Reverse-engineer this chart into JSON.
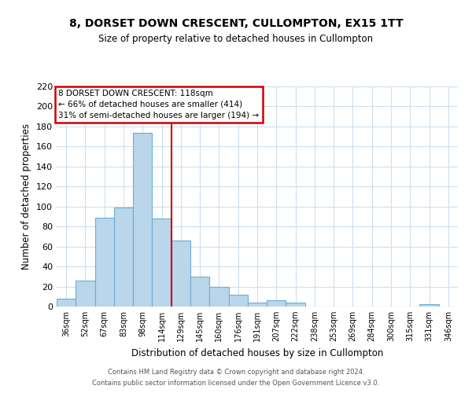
{
  "title": "8, DORSET DOWN CRESCENT, CULLOMPTON, EX15 1TT",
  "subtitle": "Size of property relative to detached houses in Cullompton",
  "xlabel": "Distribution of detached houses by size in Cullompton",
  "ylabel": "Number of detached properties",
  "bar_labels": [
    "36sqm",
    "52sqm",
    "67sqm",
    "83sqm",
    "98sqm",
    "114sqm",
    "129sqm",
    "145sqm",
    "160sqm",
    "176sqm",
    "191sqm",
    "207sqm",
    "222sqm",
    "238sqm",
    "253sqm",
    "269sqm",
    "284sqm",
    "300sqm",
    "315sqm",
    "331sqm",
    "346sqm"
  ],
  "bar_heights": [
    8,
    26,
    89,
    99,
    174,
    88,
    66,
    30,
    20,
    12,
    4,
    6,
    4,
    0,
    0,
    0,
    0,
    0,
    0,
    2,
    0
  ],
  "bar_color": "#bad6eb",
  "bar_edge_color": "#6aaed6",
  "vline_x": 5.5,
  "vline_color": "#cc0000",
  "ylim": [
    0,
    220
  ],
  "yticks": [
    0,
    20,
    40,
    60,
    80,
    100,
    120,
    140,
    160,
    180,
    200,
    220
  ],
  "annotation_line1": "8 DORSET DOWN CRESCENT: 118sqm",
  "annotation_line2": "← 66% of detached houses are smaller (414)",
  "annotation_line3": "31% of semi-detached houses are larger (194) →",
  "footer_line1": "Contains HM Land Registry data © Crown copyright and database right 2024.",
  "footer_line2": "Contains public sector information licensed under the Open Government Licence v3.0.",
  "bg_color": "#ffffff",
  "grid_color": "#ccdff0"
}
